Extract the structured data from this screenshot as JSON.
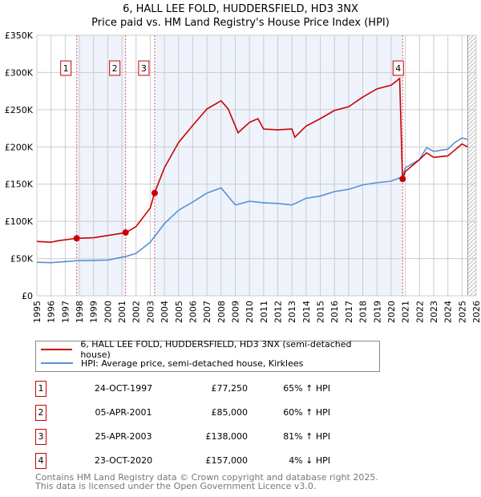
{
  "title": "6, HALL LEE FOLD, HUDDERSFIELD, HD3 3NX",
  "subtitle": "Price paid vs. HM Land Registry's House Price Index (HPI)",
  "chart_data": {
    "type": "line",
    "ylim": [
      0,
      350000
    ],
    "xlim": [
      1995,
      2026
    ],
    "yticks": [
      "£0",
      "£50K",
      "£100K",
      "£150K",
      "£200K",
      "£250K",
      "£300K",
      "£350K"
    ],
    "ytick_values": [
      0,
      50000,
      100000,
      150000,
      200000,
      250000,
      300000,
      350000
    ],
    "xticks": [
      "1995",
      "1996",
      "1997",
      "1998",
      "1999",
      "2000",
      "2001",
      "2002",
      "2003",
      "2004",
      "2005",
      "2006",
      "2007",
      "2008",
      "2009",
      "2010",
      "2011",
      "2012",
      "2013",
      "2014",
      "2015",
      "2016",
      "2017",
      "2018",
      "2019",
      "2020",
      "2021",
      "2022",
      "2023",
      "2024",
      "2025",
      "2026"
    ],
    "series": [
      {
        "name": "6, HALL LEE FOLD, HUDDERSFIELD, HD3 3NX (semi-detached house)",
        "color": "#cc0000",
        "x": [
          1995,
          1996,
          1996.5,
          1997.8,
          1999,
          2000,
          2001.3,
          2002,
          2003,
          2003.3,
          2004,
          2005,
          2006,
          2007,
          2008,
          2008.5,
          2009.2,
          2010,
          2010.6,
          2011,
          2012,
          2013,
          2013.2,
          2014,
          2015,
          2016,
          2017,
          2018,
          2019,
          2020,
          2020.6,
          2020.8,
          2021,
          2022,
          2022.5,
          2023,
          2024,
          2025,
          2025.4
        ],
        "y": [
          73000,
          72000,
          74000,
          77250,
          78000,
          81000,
          85000,
          93000,
          118000,
          138000,
          172000,
          206000,
          229000,
          251000,
          262000,
          251000,
          219000,
          233000,
          238000,
          224000,
          223000,
          224000,
          213000,
          228000,
          238000,
          249000,
          254000,
          267000,
          278000,
          283000,
          292000,
          157000,
          167000,
          183000,
          192000,
          186000,
          188000,
          204000,
          200000
        ]
      },
      {
        "name": "HPI: Average price, semi-detached house, Kirklees",
        "color": "#5b8fd4",
        "x": [
          1995,
          1996,
          1997.8,
          2000,
          2001.3,
          2002,
          2003,
          2004,
          2005,
          2006,
          2007,
          2008,
          2009,
          2010,
          2011,
          2012,
          2013,
          2014,
          2015,
          2016,
          2017,
          2018,
          2019,
          2020,
          2020.8,
          2021,
          2022,
          2022.5,
          2023,
          2024,
          2024.5,
          2025,
          2025.4
        ],
        "y": [
          45000,
          44500,
          47000,
          48000,
          53000,
          57000,
          72000,
          97000,
          115000,
          126000,
          138000,
          145000,
          122000,
          127000,
          125000,
          124000,
          122000,
          131000,
          134000,
          140000,
          143000,
          149000,
          152000,
          154000,
          160000,
          172000,
          183000,
          199000,
          194000,
          197000,
          206000,
          212000,
          210000
        ]
      }
    ],
    "sales": [
      {
        "label": "1",
        "date": "24-OCT-1997",
        "year": 1997.81,
        "price": 77250,
        "price_text": "£77,250",
        "hpi": "65% ↑ HPI"
      },
      {
        "label": "2",
        "date": "05-APR-2001",
        "year": 2001.26,
        "price": 85000,
        "price_text": "£85,000",
        "hpi": "60% ↑ HPI"
      },
      {
        "label": "3",
        "date": "25-APR-2003",
        "year": 2003.31,
        "price": 138000,
        "price_text": "£138,000",
        "hpi": "81% ↑ HPI"
      },
      {
        "label": "4",
        "date": "23-OCT-2020",
        "year": 2020.81,
        "price": 157000,
        "price_text": "£157,000",
        "hpi": "4% ↓ HPI"
      }
    ]
  },
  "legend": {
    "red": "6, HALL LEE FOLD, HUDDERSFIELD, HD3 3NX (semi-detached house)",
    "blue": "HPI: Average price, semi-detached house, Kirklees"
  },
  "footer": {
    "line1": "Contains HM Land Registry data © Crown copyright and database right 2025.",
    "line2": "This data is licensed under the Open Government Licence v3.0."
  }
}
